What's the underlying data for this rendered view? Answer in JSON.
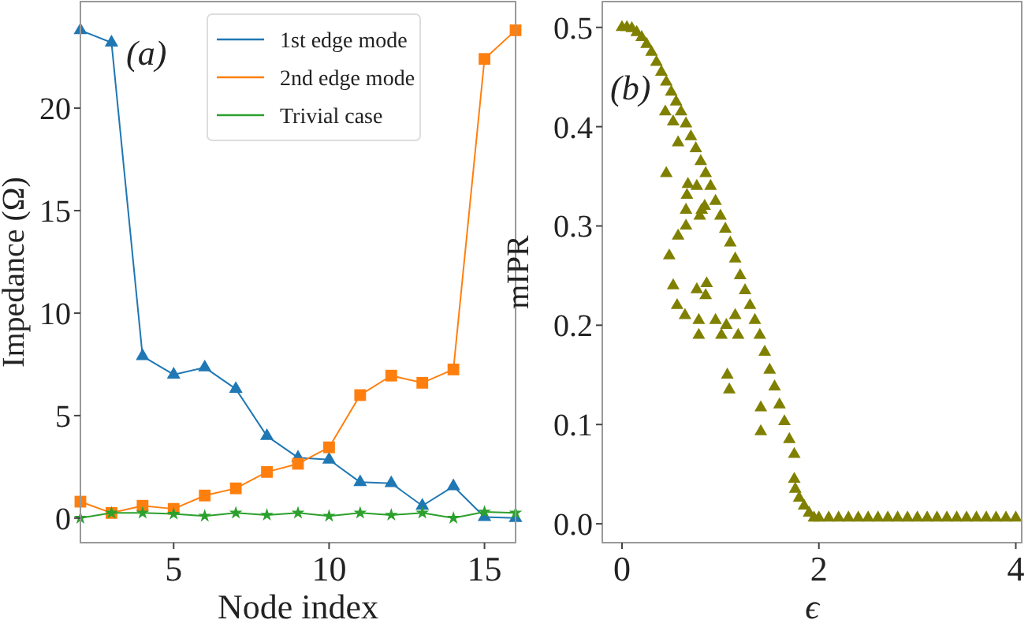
{
  "chart_data": [
    {
      "type": "line",
      "xlabel": "Node index",
      "ylabel": "Impedance (Ω)",
      "annotations": [
        "(a)"
      ],
      "x": [
        2,
        3,
        4,
        5,
        6,
        7,
        8,
        9,
        10,
        11,
        12,
        13,
        14,
        15,
        16
      ],
      "xlim": [
        2,
        16
      ],
      "xticks": [
        5,
        10,
        15
      ],
      "ylim": [
        -1.2,
        25.2
      ],
      "yticks": [
        0,
        5,
        10,
        15,
        20
      ],
      "grid": false,
      "legend": "top",
      "series": [
        {
          "name": "1st edge mode",
          "color": "#1f77b4",
          "marker": "triangle",
          "values": [
            23.8,
            23.2,
            7.9,
            7.0,
            7.35,
            6.3,
            4.0,
            2.95,
            2.85,
            1.75,
            1.7,
            0.6,
            1.55,
            0.05,
            0.0
          ]
        },
        {
          "name": "2nd edge mode",
          "color": "#ff7f0e",
          "marker": "square",
          "values": [
            0.8,
            0.25,
            0.6,
            0.45,
            1.1,
            1.45,
            2.25,
            2.65,
            3.45,
            6.0,
            6.95,
            6.6,
            7.25,
            22.4,
            23.8
          ]
        },
        {
          "name": "Trivial case",
          "color": "#2ca02c",
          "marker": "star",
          "values": [
            0.0,
            0.25,
            0.25,
            0.2,
            0.1,
            0.25,
            0.15,
            0.25,
            0.1,
            0.25,
            0.15,
            0.25,
            0.0,
            0.3,
            0.25
          ]
        }
      ]
    },
    {
      "type": "scatter",
      "xlabel": "ϵ",
      "ylabel": "mIPR",
      "annotations": [
        "(b)"
      ],
      "xlim": [
        -0.2,
        4.06
      ],
      "xticks": [
        0,
        2,
        4
      ],
      "ylim": [
        -0.019,
        0.526
      ],
      "yticks": [
        {
          "value": 0,
          "label": "0.0"
        },
        0.1,
        0.2,
        0.3,
        0.4,
        0.5
      ],
      "grid": false,
      "marker": "triangle",
      "series": [
        {
          "color": "#808000",
          "x": [
            0,
            0.05,
            0.1,
            0.15,
            0.2,
            0.25,
            0.3,
            0.35,
            0.4,
            0.45,
            0.5,
            0.55,
            0.6,
            0.65,
            0.7,
            0.75,
            0.8,
            0.85,
            0.9,
            0.95,
            1.0,
            1.05,
            1.1,
            1.15,
            1.2,
            1.25,
            1.3,
            1.35,
            1.4,
            1.45,
            1.5,
            1.55,
            1.6,
            1.65,
            1.7,
            1.75,
            1.76,
            1.8,
            1.85,
            1.9,
            1.95,
            2.0,
            2.1,
            2.2,
            2.3,
            2.4,
            2.5,
            2.6,
            2.7,
            2.8,
            2.9,
            3.0,
            3.1,
            3.2,
            3.3,
            3.4,
            3.5,
            3.6,
            3.7,
            3.8,
            3.9,
            4.0,
            0.44,
            0.52,
            0.57,
            0.67,
            0.66,
            0.65,
            0.57,
            0.65,
            0.76,
            0.79,
            0.84,
            0.86,
            0.76,
            0.81,
            0.45,
            0.48,
            0.52,
            0.56,
            0.64,
            0.78,
            0.78,
            0.85,
            0.95,
            1.01,
            1.06,
            1.07,
            1.09,
            1.15,
            1.18,
            1.41,
            1.41,
            1.75
          ],
          "values": [
            0.5,
            0.5,
            0.499,
            0.495,
            0.49,
            0.483,
            0.475,
            0.465,
            0.455,
            0.445,
            0.435,
            0.425,
            0.415,
            0.403,
            0.39,
            0.378,
            0.365,
            0.353,
            0.34,
            0.325,
            0.31,
            0.297,
            0.283,
            0.267,
            0.25,
            0.235,
            0.22,
            0.205,
            0.19,
            0.173,
            0.155,
            0.138,
            0.12,
            0.103,
            0.085,
            0.07,
            0.035,
            0.026,
            0.018,
            0.011,
            0.006,
            0.006,
            0.006,
            0.006,
            0.006,
            0.006,
            0.006,
            0.006,
            0.006,
            0.006,
            0.006,
            0.006,
            0.006,
            0.006,
            0.006,
            0.006,
            0.006,
            0.006,
            0.006,
            0.006,
            0.006,
            0.006,
            0.415,
            0.405,
            0.384,
            0.342,
            0.331,
            0.316,
            0.29,
            0.3,
            0.34,
            0.31,
            0.32,
            0.242,
            0.236,
            0.316,
            0.353,
            0.27,
            0.24,
            0.22,
            0.21,
            0.205,
            0.19,
            0.23,
            0.205,
            0.19,
            0.2,
            0.15,
            0.135,
            0.21,
            0.19,
            0.117,
            0.093,
            0.045
          ]
        }
      ]
    }
  ]
}
